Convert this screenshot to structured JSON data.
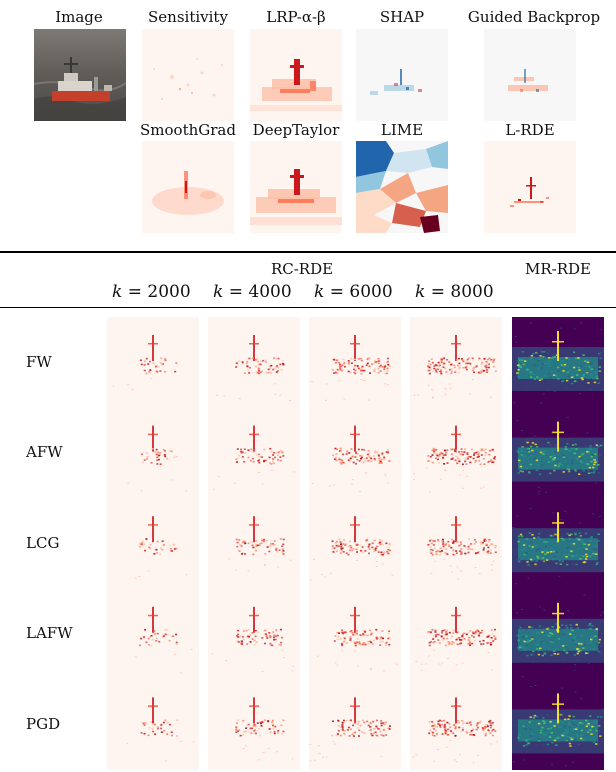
{
  "top_panel": {
    "row1_labels": [
      "Image",
      "Sensitivity",
      "LRP-α-β",
      "SHAP",
      "Guided Backprop"
    ],
    "row2_labels": [
      "SmoothGrad",
      "DeepTaylor",
      "LIME",
      "L-RDE"
    ]
  },
  "bottom_panel": {
    "rc_rde_header": "RC-RDE",
    "mr_rde_header": "MR-RDE",
    "k_prefix": "k",
    "k_values": [
      "2000",
      "4000",
      "6000",
      "8000"
    ],
    "row_labels": [
      "FW",
      "AFW",
      "LCG",
      "LAFW",
      "PGD"
    ]
  },
  "colors": {
    "reds_bg": "#fff5f0",
    "reds_light": "#fcbba1",
    "reds_mid": "#fb6a4a",
    "reds_dark": "#cb181d",
    "reds_darkest": "#67000d",
    "viridis_bg": "#440154",
    "viridis_mid": "#21918c",
    "viridis_high": "#fde725",
    "rdbu_blue": "#2166ac",
    "rdbu_light_blue": "#92c5de"
  }
}
